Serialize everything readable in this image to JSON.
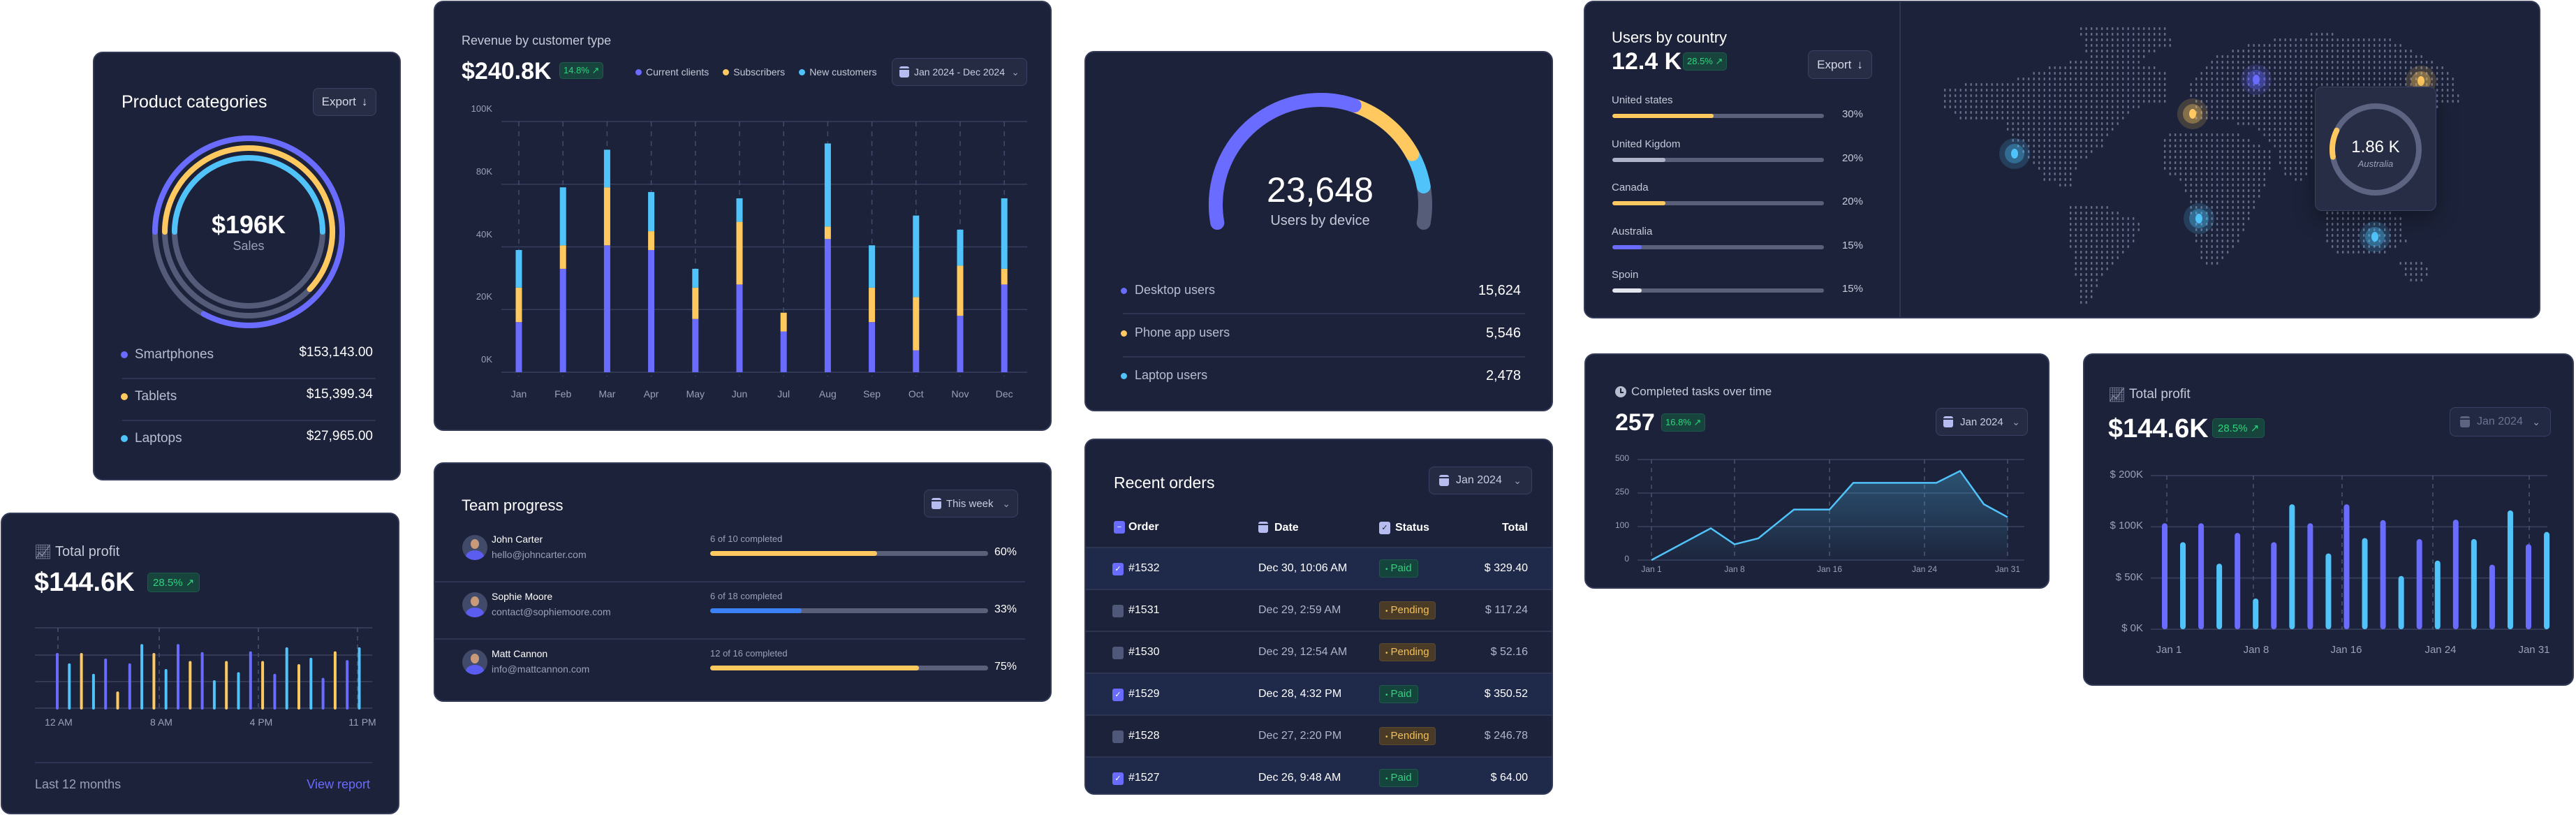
{
  "colors": {
    "purple": "#6a6bff",
    "yellow": "#ffc960",
    "cyan": "#50c4fa",
    "blue": "#3b82f6",
    "track": "#545b78",
    "card": "#1c2239",
    "green": "#2ed37c"
  },
  "product_categories": {
    "title": "Product categories",
    "export_label": "Export",
    "export_icon": "arrow-down-icon",
    "total": "$196K",
    "total_label": "Sales",
    "items": [
      {
        "name": "Smartphones",
        "value": "$153,143.00",
        "color": "#6a6bff",
        "fill": 0.83
      },
      {
        "name": "Tablets",
        "value": "$15,399.34",
        "color": "#ffc960",
        "fill": 0.62
      },
      {
        "name": "Laptops",
        "value": "$27,965.00",
        "color": "#50c4fa",
        "fill": 0.5
      }
    ]
  },
  "profit_small": {
    "icon": "line-chart-icon",
    "title": "Total profit",
    "value": "$144.6K",
    "change": "28.5% ↗",
    "footer_label": "Last 12 months",
    "link_label": "View report"
  },
  "revenue": {
    "value": "$240.8K",
    "change": "14.8% ↗",
    "range_label": "Jan 2024 - Dec 2024"
  },
  "team": {
    "title": "Team progress",
    "range_label": "This week",
    "members": [
      {
        "name": "John Carter",
        "email": "hello@johncarter.com",
        "progress_label": "6 of 10 completed",
        "percent": "60%",
        "fill": 0.6,
        "color": "#ffc960"
      },
      {
        "name": "Sophie Moore",
        "email": "contact@sophiemoore.com",
        "progress_label": "6 of 18 completed",
        "percent": "33%",
        "fill": 0.33,
        "color": "#3b82f6"
      },
      {
        "name": "Matt Cannon",
        "email": "info@mattcannon.com",
        "progress_label": "12 of 16 completed",
        "percent": "75%",
        "fill": 0.75,
        "color": "#ffc960"
      }
    ]
  },
  "devices": {
    "total": "23,648",
    "label": "Users by device",
    "gauge_fill": 0.9,
    "items": [
      {
        "name": "Desktop users",
        "value": "15,624",
        "count": 15624,
        "color": "#6a6bff"
      },
      {
        "name": "Phone app users",
        "value": "5,546",
        "count": 5546,
        "color": "#ffc960"
      },
      {
        "name": "Laptop users",
        "value": "2,478",
        "count": 2478,
        "color": "#50c4fa"
      }
    ]
  },
  "orders": {
    "title": "Recent orders",
    "range_label": "Jan 2024",
    "columns": [
      "Order",
      "Date",
      "Status",
      "Total"
    ],
    "rows": [
      {
        "selected": true,
        "order": "#1532",
        "date": "Dec 30, 10:06 AM",
        "status": "Paid",
        "total": "$ 329.40"
      },
      {
        "selected": false,
        "order": "#1531",
        "date": "Dec 29, 2:59 AM",
        "status": "Pending",
        "total": "$ 117.24"
      },
      {
        "selected": false,
        "order": "#1530",
        "date": "Dec 29, 12:54 AM",
        "status": "Pending",
        "total": "$ 52.16"
      },
      {
        "selected": true,
        "order": "#1529",
        "date": "Dec 28, 4:32 PM",
        "status": "Paid",
        "total": "$ 350.52"
      },
      {
        "selected": false,
        "order": "#1528",
        "date": "Dec 27, 2:20 PM",
        "status": "Pending",
        "total": "$ 246.78"
      },
      {
        "selected": true,
        "order": "#1527",
        "date": "Dec 26, 9:48 AM",
        "status": "Paid",
        "total": "$ 64.00"
      }
    ]
  },
  "countries": {
    "title": "Users by country",
    "value": "12.4 K",
    "change": "28.5% ↗",
    "export_label": "Export",
    "items": [
      {
        "name": "United states",
        "percent": "30%",
        "fill": 0.48,
        "color": "#ffc960"
      },
      {
        "name": "United Kigdom",
        "percent": "20%",
        "fill": 0.25,
        "color": "#aeb3c9"
      },
      {
        "name": "Canada",
        "percent": "20%",
        "fill": 0.25,
        "color": "#ffc960"
      },
      {
        "name": "Australia",
        "percent": "15%",
        "fill": 0.14,
        "color": "#6a6bff"
      },
      {
        "name": "Spoin",
        "percent": "15%",
        "fill": 0.14,
        "color": "#e4e6ef"
      }
    ],
    "tooltip": {
      "value": "1.86 K",
      "label": "Australia",
      "fill": 0.1
    }
  },
  "tasks": {
    "icon": "clock-icon",
    "value": "257",
    "change": "16.8% ↗",
    "range_label": "Jan 2024"
  },
  "profit_right": {
    "icon": "line-chart-icon",
    "value": "$144.6K",
    "change": "28.5% ↗",
    "range_label": "Jan 2024"
  },
  "chart_data": [
    {
      "type": "bar",
      "stacked": true,
      "title": "Revenue by customer type",
      "categories": [
        "Jan",
        "Feb",
        "Mar",
        "Apr",
        "May",
        "Jun",
        "Jul",
        "Aug",
        "Sep",
        "Oct",
        "Nov",
        "Dec"
      ],
      "series": [
        {
          "name": "Current clients",
          "color": "#6a6bff",
          "values": [
            16,
            33,
            41,
            39,
            17,
            28,
            13,
            45,
            16,
            7,
            18,
            28
          ]
        },
        {
          "name": "Subscribers",
          "color": "#ffc960",
          "values": [
            11,
            8,
            37,
            11,
            10,
            28,
            6,
            8,
            11,
            17,
            16,
            5
          ]
        },
        {
          "name": "New customers",
          "color": "#50c4fa",
          "values": [
            12,
            37,
            13,
            25,
            6,
            15,
            0,
            40,
            14,
            36,
            17,
            38
          ]
        }
      ],
      "yticks": [
        0,
        20,
        40,
        80,
        100
      ],
      "ytick_labels": [
        "0K",
        "20K",
        "40K",
        "80K",
        "100K"
      ],
      "ylim": [
        0,
        100
      ],
      "grid": true,
      "legend": "top"
    },
    {
      "type": "bar",
      "title": "Total profit",
      "values": [
        0.67,
        0.54,
        0.67,
        0.41,
        0.6,
        0.19,
        0.54,
        0.78,
        0.67,
        0.47,
        0.78,
        0.57,
        0.68,
        0.33,
        0.57,
        0.43,
        0.69,
        0.57,
        0.41,
        0.74,
        0.53,
        0.61,
        0.36,
        0.69,
        0.58,
        0.74
      ],
      "colors": [
        "#6a6bff",
        "#50c4fa",
        "#ffc960",
        "#50c4fa",
        "#6a6bff",
        "#ffc960",
        "#6a6bff",
        "#50c4fa",
        "#ffc960",
        "#50c4fa",
        "#6a6bff",
        "#ffc960",
        "#6a6bff",
        "#50c4fa",
        "#ffc960",
        "#50c4fa",
        "#6a6bff",
        "#ffc960",
        "#6a6bff",
        "#50c4fa",
        "#ffc960",
        "#50c4fa",
        "#6a6bff",
        "#ffc960",
        "#6a6bff",
        "#50c4fa"
      ],
      "x_labels": [
        "12 AM",
        "8 AM",
        "4 PM",
        "11 PM"
      ],
      "ylim": [
        0,
        1
      ],
      "grid": true
    },
    {
      "type": "area",
      "title": "Completed tasks over time",
      "x": [
        1,
        6,
        8,
        10,
        13,
        16,
        18,
        25,
        27,
        29,
        31
      ],
      "y": [
        0,
        95,
        47,
        65,
        176,
        176,
        326,
        326,
        415,
        200,
        142
      ],
      "yticks": [
        0,
        100,
        250,
        500
      ],
      "ytick_labels": [
        "0",
        "100",
        "250",
        "500"
      ],
      "x_ticks": [
        1,
        8,
        16,
        24,
        31
      ],
      "x_labels": [
        "Jan 1",
        "Jan 8",
        "Jan 16",
        "Jan 24",
        "Jan 31"
      ],
      "color": "#50c4fa",
      "grid": true
    },
    {
      "type": "bar",
      "title": "Total profit",
      "values": [
        107,
        85,
        107,
        64,
        94,
        30,
        85,
        144,
        107,
        74,
        144,
        89,
        113,
        52,
        88,
        67,
        114,
        88,
        63,
        132,
        83,
        95
      ],
      "colors": [
        "#6a6bff",
        "#50c4fa"
      ],
      "yticks": [
        0,
        50,
        100,
        200
      ],
      "ytick_labels": [
        "$ 0K",
        "$ 50K",
        "$ 100K",
        "$ 200K"
      ],
      "x_ticks": [
        1,
        8,
        16,
        24,
        31
      ],
      "x_labels": [
        "Jan 1",
        "Jan 8",
        "Jan 16",
        "Jan 24",
        "Jan 31"
      ],
      "grid": true
    }
  ]
}
